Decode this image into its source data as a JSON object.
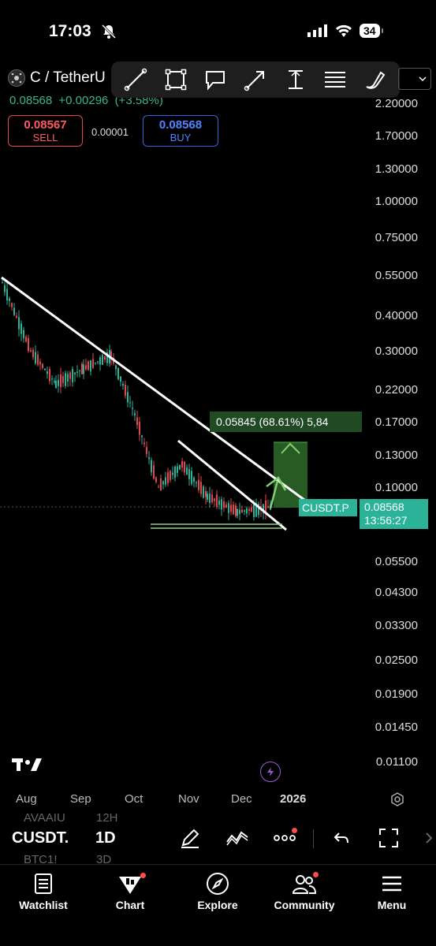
{
  "status": {
    "time": "17:03",
    "battery": "34"
  },
  "symbol": {
    "title": "C / TetherU",
    "last": "0.08568",
    "change": "+0.00296",
    "change_pct": "(+3.58%)",
    "sell_price": "0.08567",
    "sell_label": "SELL",
    "spread": "0.00001",
    "buy_price": "0.08568",
    "buy_label": "BUY"
  },
  "draw_tools": [
    "trend-line",
    "rectangle",
    "callout",
    "arrow",
    "long-position",
    "fib",
    "brush"
  ],
  "price_axis": [
    "2.20000",
    "1.70000",
    "1.30000",
    "1.00000",
    "0.75000",
    "0.55000",
    "0.40000",
    "0.30000",
    "0.22000",
    "0.17000",
    "0.13000",
    "0.10000",
    "0.05500",
    "0.04300",
    "0.03300",
    "0.02500",
    "0.01900",
    "0.01450",
    "0.01100"
  ],
  "time_axis": [
    "Aug",
    "Sep",
    "Oct",
    "Nov",
    "Dec",
    "2026"
  ],
  "overlays": {
    "measure": "0.05845 (68.61%) 5,84",
    "ticker_tag": "CUSDT.P",
    "price_tag": "0.08568",
    "countdown": "13:56:27"
  },
  "colors": {
    "up": "#2bb39a",
    "down": "#e0484f",
    "projection": "#3a7d32",
    "trendline": "#ffffff"
  },
  "chart_data": {
    "type": "candlestick",
    "x": [
      "Aug",
      "Sep",
      "Oct",
      "Nov",
      "Dec",
      "2026"
    ],
    "y_scale": "log",
    "ylim": [
      0.011,
      2.2
    ],
    "last_price": 0.08568,
    "approx_close": [
      {
        "x": "Jul-end",
        "y": 0.52
      },
      {
        "x": "Aug",
        "y": 0.3
      },
      {
        "x": "Aug-mid",
        "y": 0.23
      },
      {
        "x": "Sep",
        "y": 0.26
      },
      {
        "x": "Sep-mid",
        "y": 0.29
      },
      {
        "x": "Oct",
        "y": 0.18
      },
      {
        "x": "Oct-mid",
        "y": 0.1
      },
      {
        "x": "Nov",
        "y": 0.12
      },
      {
        "x": "Nov-mid",
        "y": 0.093
      },
      {
        "x": "Dec",
        "y": 0.082
      },
      {
        "x": "Dec-mid",
        "y": 0.08568
      }
    ],
    "projection_target": 0.145,
    "projection_change": "0.05845 (68.61%)"
  },
  "bottom": {
    "symbol": "CUSDT.",
    "interval": "1D",
    "faded_1": "AVAAIU",
    "faded_1b": "12H",
    "faded_2": "BTC1!",
    "faded_2b": "3D"
  },
  "tabs": [
    {
      "label": "Watchlist",
      "icon": "watchlist-icon"
    },
    {
      "label": "Chart",
      "icon": "chart-icon"
    },
    {
      "label": "Explore",
      "icon": "compass-icon"
    },
    {
      "label": "Community",
      "icon": "community-icon"
    },
    {
      "label": "Menu",
      "icon": "menu-icon"
    }
  ]
}
